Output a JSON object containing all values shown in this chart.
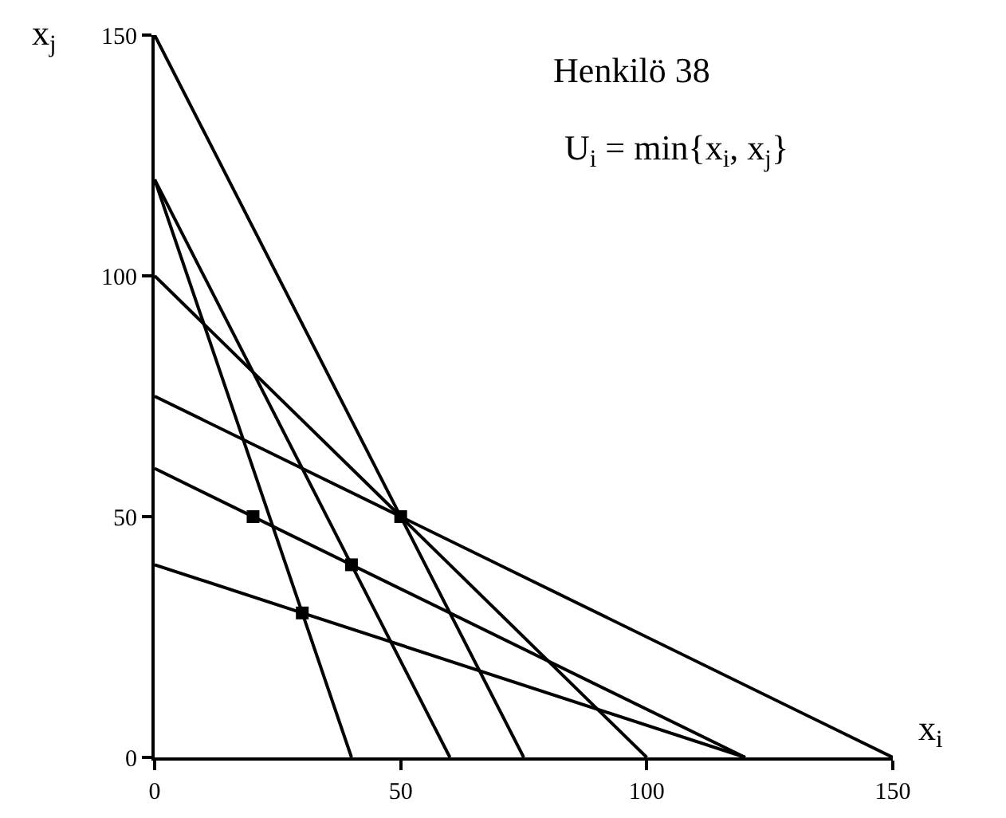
{
  "chart_data": {
    "type": "line",
    "title": "Henkilö 38",
    "xlabel": "x$_{i}$",
    "ylabel": "x$_{j}$",
    "annotations": [
      "U$_{i}$ = min{x$_{i}$, x$_{j}$}"
    ],
    "xlim": [
      0,
      150
    ],
    "ylim": [
      0,
      150
    ],
    "xticks": [
      0,
      50,
      100,
      150
    ],
    "yticks": [
      0,
      50,
      100,
      150
    ],
    "grid": false,
    "marker": "none",
    "line_style": "solid",
    "series": [
      {
        "color": "#000000",
        "x": [
          0,
          75
        ],
        "values": [
          150,
          0
        ]
      },
      {
        "color": "#000000",
        "x": [
          0,
          40
        ],
        "values": [
          120,
          0
        ]
      },
      {
        "color": "#000000",
        "x": [
          0,
          60
        ],
        "values": [
          120,
          0
        ]
      },
      {
        "color": "#000000",
        "x": [
          0,
          100
        ],
        "values": [
          100,
          0
        ]
      },
      {
        "color": "#000000",
        "x": [
          0,
          150
        ],
        "values": [
          75,
          0
        ]
      },
      {
        "color": "#000000",
        "x": [
          0,
          120
        ],
        "values": [
          60,
          0
        ]
      },
      {
        "color": "#000000",
        "x": [
          0,
          120
        ],
        "values": [
          40,
          0
        ]
      },
      {
        "type": "scatter",
        "marker": "square",
        "color": "#000000",
        "x": [
          20,
          30,
          40,
          50
        ],
        "values": [
          50,
          30,
          40,
          50
        ]
      }
    ]
  }
}
